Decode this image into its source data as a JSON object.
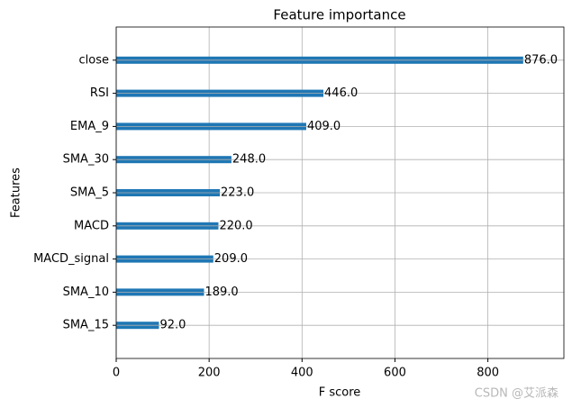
{
  "chart_data": {
    "type": "barh",
    "title": "Feature importance",
    "xlabel": "F score",
    "ylabel": "Features",
    "categories": [
      "close",
      "RSI",
      "EMA_9",
      "SMA_30",
      "SMA_5",
      "MACD",
      "MACD_signal",
      "SMA_10",
      "SMA_15"
    ],
    "values": [
      876,
      446,
      409,
      248,
      223,
      220,
      209,
      189,
      92
    ],
    "value_labels": [
      "876.0",
      "446.0",
      "409.0",
      "248.0",
      "223.0",
      "220.0",
      "209.0",
      "189.0",
      "92.0"
    ],
    "color": "#1f77b4",
    "xlim": [
      0,
      963.6
    ],
    "xticks": [
      0,
      200,
      400,
      600,
      800
    ],
    "grid": true,
    "watermark": "CSDN @艾派森"
  }
}
